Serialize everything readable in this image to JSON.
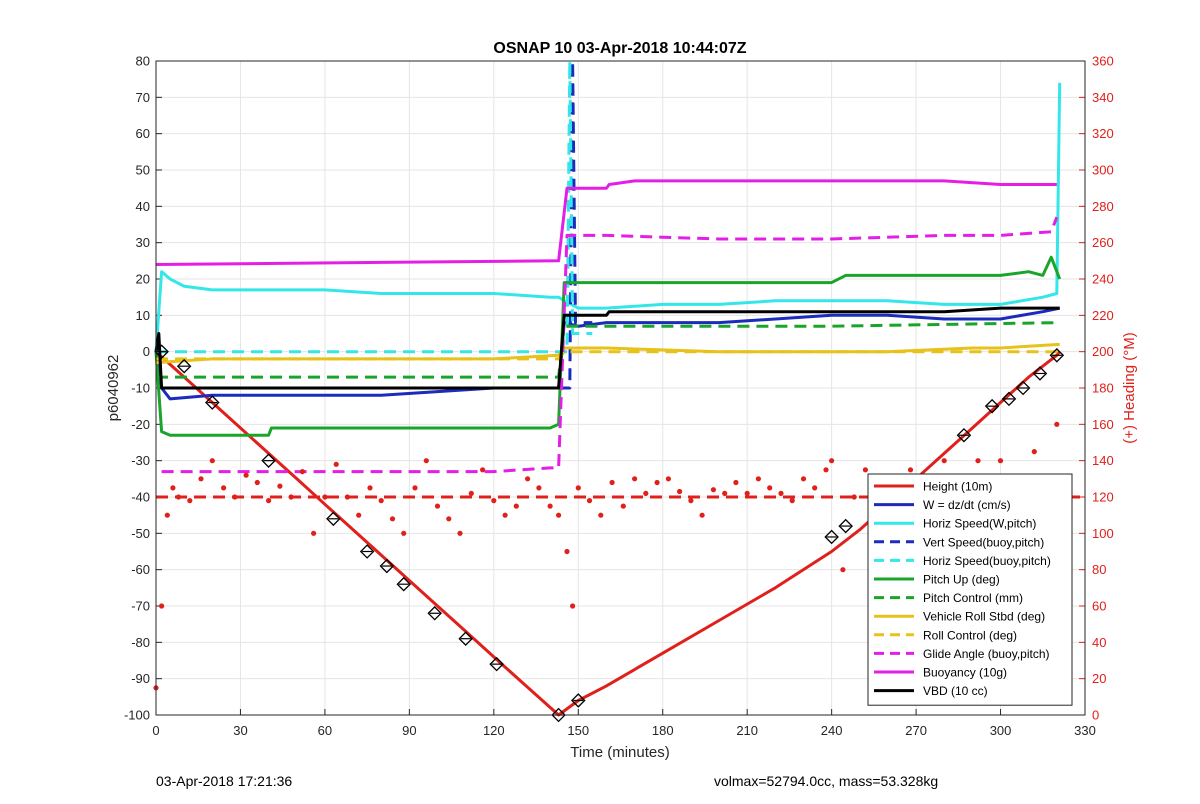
{
  "chart_data": {
    "type": "line",
    "title": "OSNAP 10 03-Apr-2018 10:44:07Z",
    "xlabel": "Time (minutes)",
    "ylabel_left": "p6040962",
    "ylabel_right": "(+) Heading (°M)",
    "xlim": [
      0,
      330
    ],
    "ylim_left": [
      -100,
      80
    ],
    "ylim_right": [
      0,
      360
    ],
    "xticks": [
      "0",
      "30",
      "60",
      "90",
      "120",
      "150",
      "180",
      "210",
      "240",
      "270",
      "300",
      "330"
    ],
    "yticks_left": [
      "-100",
      "-90",
      "-80",
      "-70",
      "-60",
      "-50",
      "-40",
      "-30",
      "-20",
      "-10",
      "0",
      "10",
      "20",
      "30",
      "40",
      "50",
      "60",
      "70",
      "80"
    ],
    "yticks_right": [
      "0",
      "20",
      "40",
      "60",
      "80",
      "100",
      "120",
      "140",
      "160",
      "180",
      "200",
      "220",
      "240",
      "260",
      "280",
      "300",
      "320",
      "340",
      "360"
    ],
    "grid": true,
    "legend_position": "bottom-right",
    "colors": {
      "red": "#e0201b",
      "blue": "#1a2bbd",
      "cyan": "#33e6e8",
      "green": "#1aa52a",
      "gold": "#e6c21a",
      "magenta": "#e31fe6",
      "black": "#000000"
    },
    "series": [
      {
        "name": "Height (10m)",
        "style": "solid",
        "color": "#e0201b",
        "x": [
          0,
          10,
          20,
          30,
          40,
          50,
          60,
          70,
          80,
          90,
          100,
          110,
          120,
          130,
          143,
          150,
          160,
          180,
          200,
          220,
          240,
          250,
          260,
          270,
          280,
          290,
          300,
          310,
          320,
          321
        ],
        "y": [
          0,
          -7,
          -14,
          -21,
          -28,
          -35,
          -42,
          -49,
          -56,
          -63,
          -70,
          -77,
          -84,
          -91,
          -100,
          -96,
          -92,
          -83,
          -74,
          -65,
          -55,
          -49,
          -42,
          -35,
          -28,
          -21,
          -14,
          -7,
          -1,
          0
        ]
      },
      {
        "name": "W = dz/dt (cm/s)",
        "style": "solid",
        "color": "#1a2bbd",
        "x": [
          0,
          2,
          5,
          20,
          40,
          60,
          80,
          100,
          120,
          140,
          143,
          145,
          150,
          160,
          180,
          200,
          220,
          240,
          260,
          280,
          300,
          315,
          321
        ],
        "y": [
          0,
          -10,
          -13,
          -12,
          -12,
          -12,
          -12,
          -11,
          -10,
          -10,
          -10,
          8,
          7,
          8,
          8,
          8,
          9,
          10,
          10,
          9,
          9,
          11,
          12
        ]
      },
      {
        "name": "Horiz Speed(W,pitch)",
        "style": "solid",
        "color": "#33e6e8",
        "x": [
          0,
          2,
          5,
          10,
          20,
          40,
          60,
          80,
          100,
          120,
          140,
          143,
          145,
          150,
          160,
          180,
          200,
          220,
          240,
          260,
          280,
          300,
          315,
          320,
          321
        ],
        "y": [
          0,
          22,
          20,
          18,
          17,
          17,
          17,
          16,
          16,
          16,
          15,
          15,
          14,
          12,
          12,
          13,
          13,
          14,
          14,
          14,
          13,
          13,
          15,
          16,
          74
        ]
      },
      {
        "name": "Vert Speed(buoy,pitch)",
        "style": "dashed",
        "color": "#1a2bbd",
        "x": [
          143,
          147,
          148,
          149,
          155
        ],
        "y": [
          -10,
          -10,
          80,
          8,
          8
        ]
      },
      {
        "name": "Horiz Speed(buoy,pitch)",
        "style": "dashed",
        "color": "#33e6e8",
        "x": [
          0,
          50,
          100,
          140,
          146,
          147,
          148,
          155
        ],
        "y": [
          0,
          0,
          0,
          0,
          0,
          80,
          5,
          5
        ]
      },
      {
        "name": "Pitch Up (deg)",
        "style": "solid",
        "color": "#1aa52a",
        "x": [
          0,
          2,
          5,
          40,
          41,
          80,
          120,
          140,
          143,
          145,
          150,
          200,
          240,
          245,
          300,
          310,
          315,
          318,
          321
        ],
        "y": [
          0,
          -22,
          -23,
          -23,
          -21,
          -21,
          -21,
          -21,
          -20,
          19,
          19,
          19,
          19,
          21,
          21,
          22,
          21,
          26,
          20
        ]
      },
      {
        "name": "Pitch Control (mm)",
        "style": "dashed",
        "color": "#1aa52a",
        "x": [
          0,
          143,
          145,
          240,
          321
        ],
        "y": [
          -7,
          -7,
          7,
          7,
          8
        ]
      },
      {
        "name": "Vehicle Roll Stbd (deg)",
        "style": "solid",
        "color": "#e6c21a",
        "x": [
          0,
          20,
          40,
          60,
          80,
          100,
          120,
          143,
          145,
          160,
          200,
          240,
          260,
          290,
          300,
          321
        ],
        "y": [
          -3,
          -2,
          -2,
          -2,
          -2,
          -2,
          -2,
          -1,
          1,
          1,
          0,
          0,
          0,
          1,
          1,
          2
        ]
      },
      {
        "name": "Roll Control (deg)",
        "style": "dashed",
        "color": "#e6c21a",
        "x": [
          0,
          20,
          40,
          60,
          80,
          100,
          120,
          143,
          145,
          200,
          240,
          300,
          321
        ],
        "y": [
          -2,
          -2,
          -2,
          -2,
          -2,
          -2,
          -2,
          -2,
          0,
          0,
          0,
          0,
          0
        ]
      },
      {
        "name": "Glide Angle (buoy,pitch)",
        "style": "dashed",
        "color": "#e31fe6",
        "x": [
          2,
          40,
          80,
          120,
          140,
          143,
          146,
          160,
          200,
          240,
          280,
          300,
          318,
          320
        ],
        "y": [
          -33,
          -33,
          -33,
          -33,
          -32,
          -32,
          32,
          32,
          31,
          31,
          32,
          32,
          33,
          37
        ]
      },
      {
        "name": "Buoyancy (10g)",
        "style": "solid",
        "color": "#e31fe6",
        "x": [
          0,
          143,
          146,
          160,
          161,
          170,
          200,
          240,
          280,
          300,
          320
        ],
        "y": [
          24,
          25,
          45,
          45,
          46,
          47,
          47,
          47,
          47,
          46,
          46
        ]
      },
      {
        "name": "VBD (10 cc)",
        "style": "solid",
        "color": "#000000",
        "x": [
          0,
          1,
          2,
          40,
          80,
          100,
          143,
          145,
          146,
          150,
          160,
          161,
          200,
          240,
          280,
          300,
          321
        ],
        "y": [
          0,
          5,
          -10,
          -10,
          -10,
          -10,
          -10,
          10,
          10,
          10,
          10,
          11,
          11,
          11,
          11,
          12,
          12
        ]
      }
    ],
    "heading": {
      "name": "Heading (°M)",
      "color": "#e0201b",
      "reference_heading": 120,
      "x": [
        0,
        2,
        4,
        6,
        8,
        12,
        16,
        20,
        24,
        28,
        32,
        36,
        40,
        44,
        48,
        52,
        56,
        60,
        64,
        68,
        72,
        76,
        80,
        84,
        88,
        92,
        96,
        100,
        104,
        108,
        112,
        116,
        120,
        124,
        128,
        132,
        136,
        140,
        143,
        146,
        148,
        150,
        154,
        158,
        162,
        166,
        170,
        174,
        178,
        182,
        186,
        190,
        194,
        198,
        202,
        206,
        210,
        214,
        218,
        222,
        226,
        230,
        234,
        238,
        240,
        244,
        248,
        252,
        256,
        260,
        264,
        268,
        272,
        276,
        280,
        284,
        288,
        292,
        296,
        300,
        304,
        308,
        312,
        316,
        320
      ],
      "y": [
        15,
        60,
        110,
        125,
        120,
        118,
        130,
        140,
        125,
        120,
        132,
        128,
        118,
        126,
        120,
        134,
        100,
        120,
        138,
        120,
        110,
        125,
        118,
        108,
        100,
        125,
        140,
        115,
        108,
        100,
        122,
        135,
        118,
        110,
        115,
        130,
        125,
        115,
        110,
        90,
        60,
        125,
        118,
        110,
        128,
        115,
        130,
        122,
        128,
        130,
        123,
        118,
        110,
        124,
        122,
        128,
        122,
        130,
        125,
        122,
        118,
        130,
        125,
        135,
        140,
        80,
        120,
        135,
        110,
        128,
        120,
        135,
        110,
        128,
        140,
        112,
        120,
        140,
        120,
        140,
        110,
        130,
        145,
        120,
        160
      ]
    },
    "markers": {
      "name": "Height markers",
      "x": [
        2,
        10,
        20,
        40,
        63,
        75,
        82,
        88,
        99,
        110,
        121,
        143,
        150,
        240,
        245,
        287,
        297,
        303,
        308,
        314,
        320
      ],
      "y": [
        0,
        -4,
        -14,
        -30,
        -46,
        -55,
        -59,
        -64,
        -72,
        -79,
        -86,
        -100,
        -96,
        -51,
        -48,
        -23,
        -15,
        -13,
        -10,
        -6,
        -1
      ]
    }
  },
  "footer": {
    "date_label": "03-Apr-2018 17:21:36",
    "summary_label": "volmax=52794.0cc, mass=53.328kg"
  }
}
